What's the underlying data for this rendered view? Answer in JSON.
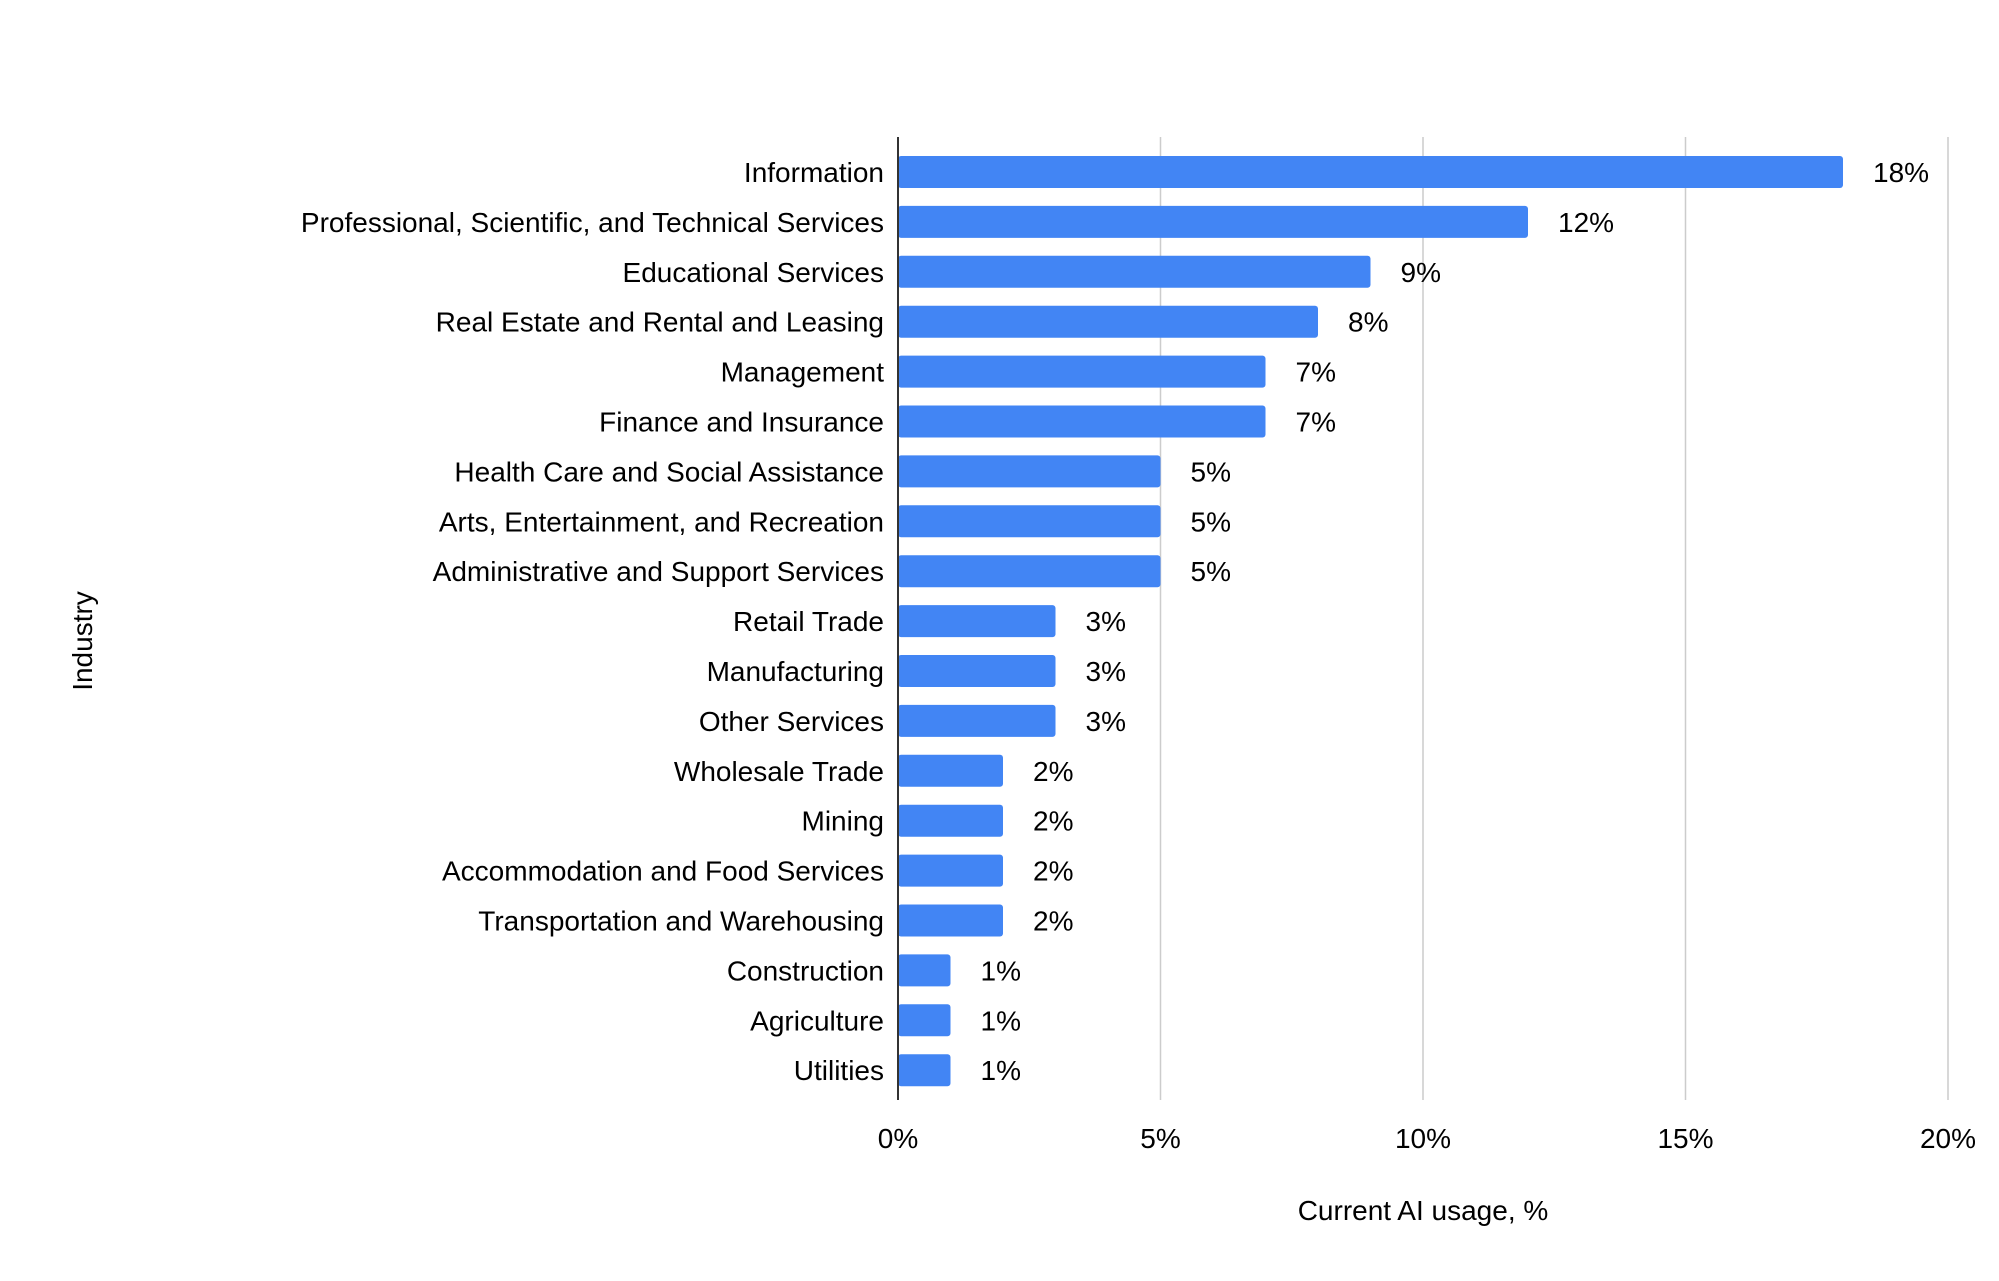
{
  "chart_data": {
    "type": "bar",
    "orientation": "horizontal",
    "title": "",
    "xlabel": "Current AI usage, %",
    "ylabel": "Industry",
    "xlim": [
      0,
      20
    ],
    "x_ticks": [
      0,
      5,
      10,
      15,
      20
    ],
    "x_tick_labels": [
      "0%",
      "5%",
      "10%",
      "15%",
      "20%"
    ],
    "grid": "vertical",
    "legend": "none",
    "bar_color": "#4285f4",
    "categories": [
      "Information",
      "Professional, Scientific, and Technical Services",
      "Educational Services",
      "Real Estate and Rental and Leasing",
      "Management",
      "Finance and Insurance",
      "Health Care and Social Assistance",
      "Arts, Entertainment, and Recreation",
      "Administrative and Support Services",
      "Retail Trade",
      "Manufacturing",
      "Other Services",
      "Wholesale Trade",
      "Mining",
      "Accommodation and Food Services",
      "Transportation and Warehousing",
      "Construction",
      "Agriculture",
      "Utilities"
    ],
    "values": [
      18,
      12,
      9,
      8,
      7,
      7,
      5,
      5,
      5,
      3,
      3,
      3,
      2,
      2,
      2,
      2,
      1,
      1,
      1
    ],
    "value_labels": [
      "18%",
      "12%",
      "9%",
      "8%",
      "7%",
      "7%",
      "5%",
      "5%",
      "5%",
      "3%",
      "3%",
      "3%",
      "2%",
      "2%",
      "2%",
      "2%",
      "1%",
      "1%",
      "1%"
    ]
  }
}
